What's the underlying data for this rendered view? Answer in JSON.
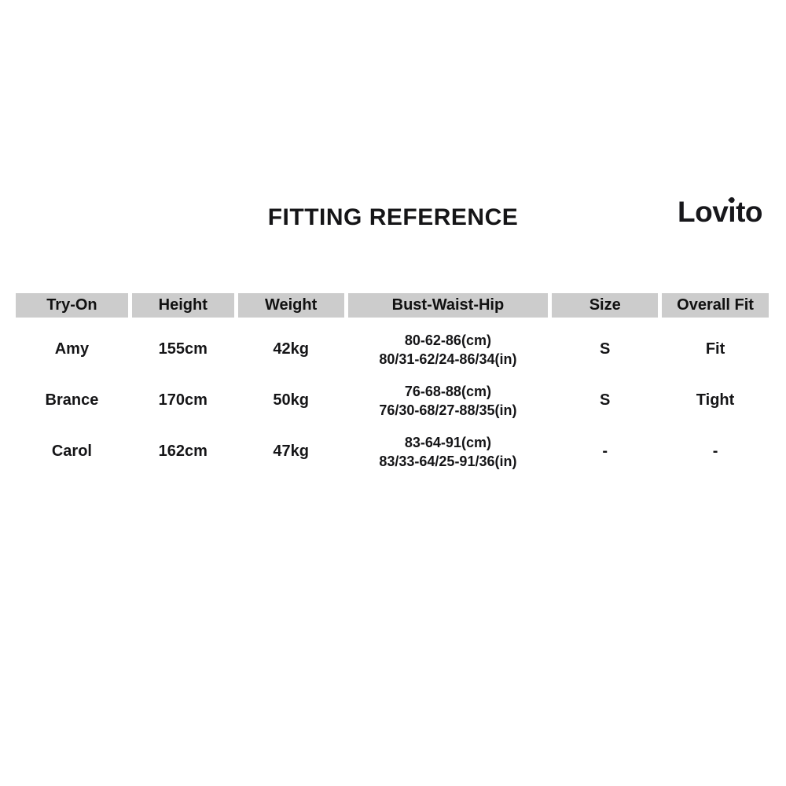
{
  "header": {
    "title": "FITTING REFERENCE",
    "brand": {
      "name": "Lovito",
      "prefix": "Lov",
      "i_char": "ı",
      "suffix": "to"
    }
  },
  "colors": {
    "page_bg": "#ffffff",
    "header_bg": "#cccccc",
    "text": "#151517"
  },
  "chart_data": {
    "type": "table",
    "title": "FITTING REFERENCE",
    "columns": [
      "Try-On",
      "Height",
      "Weight",
      "Bust-Waist-Hip",
      "Size",
      "Overall Fit"
    ],
    "rows": [
      {
        "try_on": "Amy",
        "height": "155cm",
        "weight": "42kg",
        "bust_waist_hip_cm": "80-62-86(cm)",
        "bust_waist_hip_in": "80/31-62/24-86/34(in)",
        "size": "S",
        "overall_fit": "Fit"
      },
      {
        "try_on": "Brance",
        "height": "170cm",
        "weight": "50kg",
        "bust_waist_hip_cm": "76-68-88(cm)",
        "bust_waist_hip_in": "76/30-68/27-88/35(in)",
        "size": "S",
        "overall_fit": "Tight"
      },
      {
        "try_on": "Carol",
        "height": "162cm",
        "weight": "47kg",
        "bust_waist_hip_cm": "83-64-91(cm)",
        "bust_waist_hip_in": "83/33-64/25-91/36(in)",
        "size": "-",
        "overall_fit": "-"
      }
    ]
  }
}
